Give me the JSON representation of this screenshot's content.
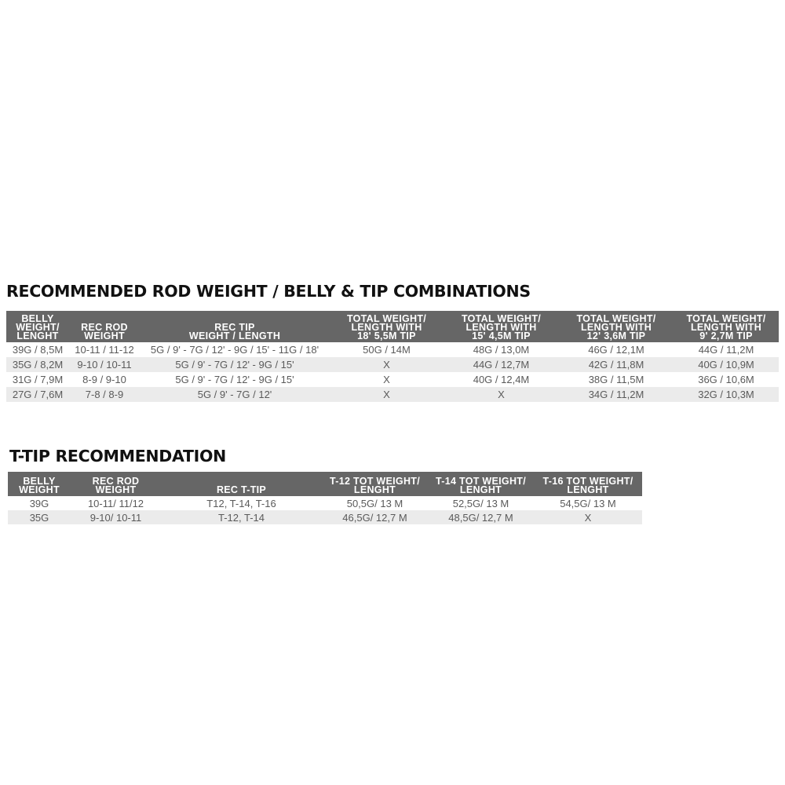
{
  "table1": {
    "title": "RECOMMENDED ROD WEIGHT / BELLY & TIP COMBINATIONS",
    "headers": [
      [
        "BELLY",
        "WEIGHT/",
        "LENGHT"
      ],
      [
        "REC ROD",
        "WEIGHT"
      ],
      [
        "REC TIP",
        "WEIGHT / LENGTH"
      ],
      [
        "TOTAL WEIGHT/",
        "LENGTH WITH",
        "18'  5,5M TIP"
      ],
      [
        "TOTAL WEIGHT/",
        "LENGTH WITH",
        "15'  4,5M TIP"
      ],
      [
        "TOTAL WEIGHT/",
        "LENGTH WITH",
        "12'  3,6M TIP"
      ],
      [
        "TOTAL WEIGHT/",
        "LENGTH WITH",
        "9'  2,7M TIP"
      ]
    ],
    "rows": [
      [
        "39G / 8,5M",
        "10-11 / 11-12",
        "5G / 9' - 7G / 12' - 9G / 15' - 11G / 18'",
        "50G / 14M",
        "48G / 13,0M",
        "46G / 12,1M",
        "44G / 11,2M"
      ],
      [
        "35G / 8,2M",
        "9-10 / 10-11",
        "5G / 9' - 7G / 12' - 9G / 15'",
        "X",
        "44G / 12,7M",
        "42G / 11,8M",
        "40G / 10,9M"
      ],
      [
        "31G / 7,9M",
        "8-9 / 9-10",
        "5G / 9' - 7G / 12' - 9G / 15'",
        "X",
        "40G / 12,4M",
        "38G / 11,5M",
        "36G / 10,6M"
      ],
      [
        "27G / 7,6M",
        "7-8 / 8-9",
        "5G / 9' - 7G / 12'",
        "X",
        "X",
        "34G / 11,2M",
        "32G / 10,3M"
      ]
    ]
  },
  "table2": {
    "title": "T-TIP RECOMMENDATION",
    "headers": [
      [
        "BELLY",
        "WEIGHT"
      ],
      [
        "REC ROD",
        "WEIGHT"
      ],
      [
        "REC T-TIP"
      ],
      [
        "T-12 TOT WEIGHT/",
        "LENGHT"
      ],
      [
        "T-14 TOT WEIGHT/",
        "LENGHT"
      ],
      [
        "T-16 TOT WEIGHT/",
        "LENGHT"
      ]
    ],
    "rows": [
      [
        "39G",
        "10-11/ 11/12",
        "T12, T-14, T-16",
        "50,5G/ 13 M",
        "52,5G/ 13 M",
        "54,5G/ 13 M"
      ],
      [
        "35G",
        "9-10/ 10-11",
        "T-12, T-14",
        "46,5G/ 12,7 M",
        "48,5G/ 12,7 M",
        "X"
      ]
    ]
  },
  "colors": {
    "header_bg": "#666666",
    "alt_row": "#ebebeb",
    "title": "#111111"
  }
}
